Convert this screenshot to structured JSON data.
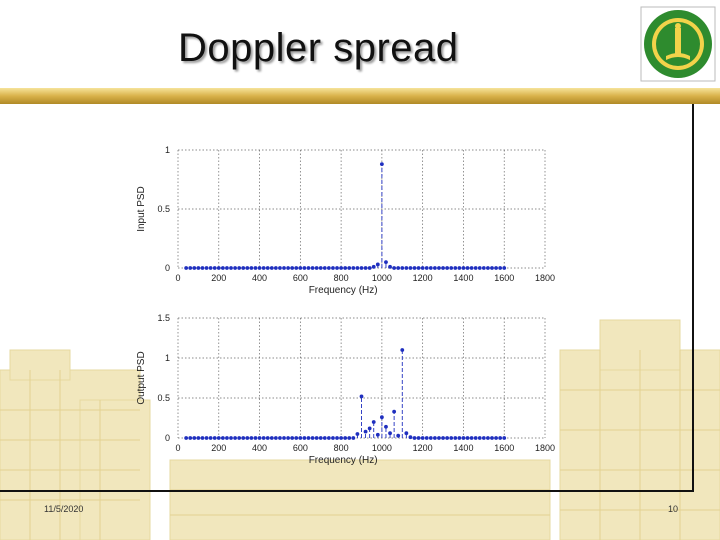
{
  "slide": {
    "title": "Doppler spread",
    "date": "11/5/2020",
    "page_number": "10"
  },
  "colors": {
    "accent_band": "#d9b24a",
    "logo_green": "#2e8b2e",
    "series": "#1f2fbf"
  },
  "chart_data": [
    {
      "type": "scatter",
      "style": "stem-dashed",
      "xlabel": "Frequency (Hz)",
      "ylabel": "Input PSD",
      "xlim": [
        0,
        1800
      ],
      "ylim": [
        0,
        1
      ],
      "xticks": [
        0,
        200,
        400,
        600,
        800,
        1000,
        1200,
        1400,
        1600,
        1800
      ],
      "yticks": [
        0,
        0.5,
        1
      ],
      "ytick_labels": [
        "0",
        "0.5",
        "1"
      ],
      "grid": true,
      "x_start": 40,
      "x_step": 20,
      "x_end": 1600,
      "baseline": 0,
      "peaks": [
        {
          "x": 960,
          "y": 0.01
        },
        {
          "x": 980,
          "y": 0.03
        },
        {
          "x": 1000,
          "y": 0.88
        },
        {
          "x": 1020,
          "y": 0.05
        },
        {
          "x": 1040,
          "y": 0.01
        }
      ]
    },
    {
      "type": "scatter",
      "style": "stem-dashed",
      "xlabel": "Frequency (Hz)",
      "ylabel": "Output PSD",
      "xlim": [
        0,
        1800
      ],
      "ylim": [
        0,
        1.5
      ],
      "xticks": [
        0,
        200,
        400,
        600,
        800,
        1000,
        1200,
        1400,
        1600,
        1800
      ],
      "yticks": [
        0,
        0.5,
        1,
        1.5
      ],
      "ytick_labels": [
        "0",
        "0.5",
        "1",
        "1.5"
      ],
      "grid": true,
      "x_start": 40,
      "x_step": 20,
      "x_end": 1600,
      "baseline": 0,
      "peaks": [
        {
          "x": 880,
          "y": 0.05
        },
        {
          "x": 900,
          "y": 0.52
        },
        {
          "x": 920,
          "y": 0.08
        },
        {
          "x": 940,
          "y": 0.12
        },
        {
          "x": 960,
          "y": 0.2
        },
        {
          "x": 980,
          "y": 0.04
        },
        {
          "x": 1000,
          "y": 0.26
        },
        {
          "x": 1020,
          "y": 0.14
        },
        {
          "x": 1040,
          "y": 0.06
        },
        {
          "x": 1060,
          "y": 0.33
        },
        {
          "x": 1080,
          "y": 0.03
        },
        {
          "x": 1100,
          "y": 1.1
        },
        {
          "x": 1120,
          "y": 0.06
        },
        {
          "x": 1140,
          "y": 0.01
        }
      ]
    }
  ]
}
